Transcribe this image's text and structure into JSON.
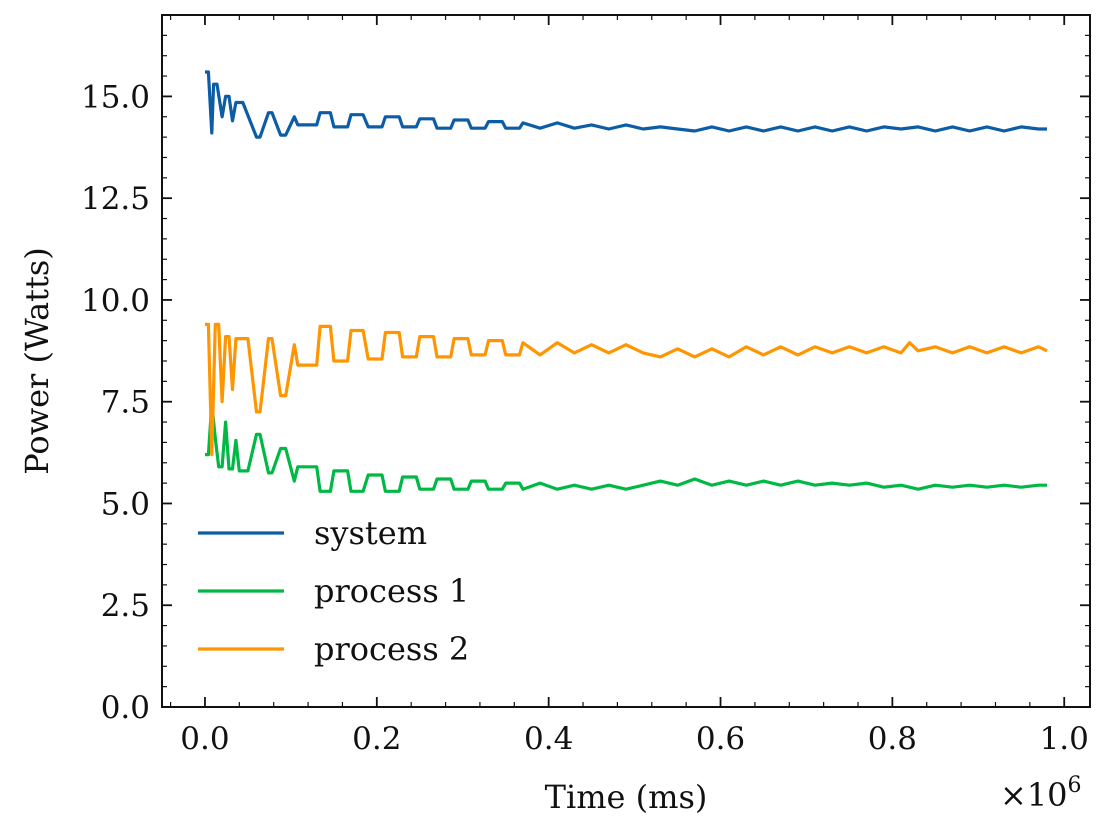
{
  "chart_data": {
    "type": "line",
    "title": "",
    "xlabel": "Time (ms)",
    "ylabel": "Power (Watts)",
    "x_multiplier_label": "×10",
    "x_multiplier_exponent": "6",
    "xlim": [
      -0.05,
      1.03
    ],
    "ylim": [
      0,
      17
    ],
    "xticks": [
      0.0,
      0.2,
      0.4,
      0.6,
      0.8,
      1.0
    ],
    "xtick_labels": [
      "0.0",
      "0.2",
      "0.4",
      "0.6",
      "0.8",
      "1.0"
    ],
    "yticks": [
      0.0,
      2.5,
      5.0,
      7.5,
      10.0,
      12.5,
      15.0
    ],
    "ytick_labels": [
      "0.0",
      "2.5",
      "5.0",
      "7.5",
      "10.0",
      "12.5",
      "15.0"
    ],
    "grid": false,
    "legend_position": "lower-left",
    "series": [
      {
        "name": "system",
        "color": "#0C5DA5",
        "x": [
          0.0,
          0.004,
          0.008,
          0.01,
          0.014,
          0.02,
          0.024,
          0.028,
          0.032,
          0.036,
          0.04,
          0.044,
          0.06,
          0.064,
          0.074,
          0.078,
          0.088,
          0.094,
          0.104,
          0.108,
          0.114,
          0.13,
          0.134,
          0.146,
          0.15,
          0.166,
          0.17,
          0.184,
          0.19,
          0.206,
          0.21,
          0.226,
          0.23,
          0.246,
          0.25,
          0.266,
          0.27,
          0.286,
          0.29,
          0.306,
          0.31,
          0.326,
          0.33,
          0.346,
          0.35,
          0.366,
          0.37,
          0.39,
          0.41,
          0.43,
          0.45,
          0.47,
          0.49,
          0.51,
          0.53,
          0.55,
          0.57,
          0.59,
          0.61,
          0.63,
          0.65,
          0.67,
          0.69,
          0.71,
          0.73,
          0.75,
          0.77,
          0.79,
          0.81,
          0.83,
          0.85,
          0.87,
          0.89,
          0.91,
          0.93,
          0.95,
          0.97,
          0.98
        ],
        "y": [
          15.6,
          15.6,
          14.1,
          15.3,
          15.3,
          14.5,
          15.0,
          15.0,
          14.4,
          14.85,
          14.85,
          14.85,
          14.0,
          14.0,
          14.6,
          14.6,
          14.05,
          14.05,
          14.5,
          14.3,
          14.3,
          14.3,
          14.6,
          14.6,
          14.25,
          14.25,
          14.55,
          14.55,
          14.25,
          14.25,
          14.5,
          14.5,
          14.25,
          14.25,
          14.45,
          14.45,
          14.22,
          14.22,
          14.42,
          14.42,
          14.22,
          14.22,
          14.38,
          14.38,
          14.22,
          14.22,
          14.35,
          14.22,
          14.35,
          14.22,
          14.3,
          14.2,
          14.3,
          14.2,
          14.25,
          14.2,
          14.15,
          14.25,
          14.15,
          14.25,
          14.15,
          14.25,
          14.15,
          14.25,
          14.15,
          14.25,
          14.15,
          14.25,
          14.2,
          14.25,
          14.15,
          14.25,
          14.15,
          14.25,
          14.15,
          14.25,
          14.2,
          14.2
        ]
      },
      {
        "name": "process 1",
        "color": "#00B945",
        "x": [
          0.0,
          0.004,
          0.008,
          0.012,
          0.016,
          0.02,
          0.024,
          0.028,
          0.032,
          0.036,
          0.04,
          0.044,
          0.05,
          0.06,
          0.064,
          0.074,
          0.078,
          0.088,
          0.094,
          0.104,
          0.108,
          0.114,
          0.13,
          0.134,
          0.146,
          0.15,
          0.166,
          0.17,
          0.184,
          0.19,
          0.206,
          0.21,
          0.226,
          0.23,
          0.246,
          0.25,
          0.266,
          0.27,
          0.286,
          0.29,
          0.306,
          0.31,
          0.326,
          0.33,
          0.346,
          0.35,
          0.366,
          0.37,
          0.39,
          0.41,
          0.43,
          0.45,
          0.47,
          0.49,
          0.51,
          0.53,
          0.55,
          0.57,
          0.59,
          0.61,
          0.63,
          0.65,
          0.67,
          0.69,
          0.71,
          0.73,
          0.75,
          0.77,
          0.79,
          0.81,
          0.83,
          0.85,
          0.87,
          0.89,
          0.91,
          0.93,
          0.95,
          0.97,
          0.98
        ],
        "y": [
          6.2,
          6.2,
          7.45,
          6.6,
          5.9,
          5.9,
          7.0,
          5.85,
          5.85,
          6.55,
          5.8,
          5.8,
          5.8,
          6.7,
          6.7,
          5.75,
          5.75,
          6.35,
          6.35,
          5.55,
          5.9,
          5.9,
          5.9,
          5.3,
          5.3,
          5.8,
          5.8,
          5.3,
          5.3,
          5.7,
          5.7,
          5.3,
          5.3,
          5.65,
          5.65,
          5.35,
          5.35,
          5.6,
          5.6,
          5.35,
          5.35,
          5.55,
          5.55,
          5.35,
          5.35,
          5.5,
          5.5,
          5.35,
          5.5,
          5.35,
          5.45,
          5.35,
          5.45,
          5.35,
          5.45,
          5.55,
          5.45,
          5.6,
          5.45,
          5.55,
          5.45,
          5.55,
          5.45,
          5.55,
          5.45,
          5.5,
          5.45,
          5.5,
          5.4,
          5.45,
          5.35,
          5.45,
          5.4,
          5.45,
          5.4,
          5.45,
          5.4,
          5.45,
          5.45
        ]
      },
      {
        "name": "process 2",
        "color": "#FF9500",
        "x": [
          0.0,
          0.004,
          0.008,
          0.012,
          0.016,
          0.02,
          0.024,
          0.028,
          0.032,
          0.036,
          0.04,
          0.044,
          0.05,
          0.06,
          0.064,
          0.074,
          0.078,
          0.088,
          0.094,
          0.104,
          0.108,
          0.114,
          0.13,
          0.134,
          0.146,
          0.15,
          0.166,
          0.17,
          0.184,
          0.19,
          0.206,
          0.21,
          0.226,
          0.23,
          0.246,
          0.25,
          0.266,
          0.27,
          0.286,
          0.29,
          0.306,
          0.31,
          0.326,
          0.33,
          0.346,
          0.35,
          0.366,
          0.37,
          0.39,
          0.41,
          0.43,
          0.45,
          0.47,
          0.49,
          0.51,
          0.53,
          0.55,
          0.57,
          0.59,
          0.61,
          0.63,
          0.65,
          0.67,
          0.69,
          0.71,
          0.73,
          0.75,
          0.77,
          0.79,
          0.81,
          0.82,
          0.83,
          0.85,
          0.87,
          0.89,
          0.91,
          0.93,
          0.95,
          0.97,
          0.98
        ],
        "y": [
          9.4,
          9.4,
          6.2,
          9.4,
          9.4,
          7.5,
          9.1,
          9.1,
          7.8,
          9.05,
          9.05,
          9.05,
          9.05,
          7.25,
          7.25,
          9.05,
          9.05,
          7.65,
          7.65,
          8.9,
          8.4,
          8.4,
          8.4,
          9.35,
          9.35,
          8.5,
          8.5,
          9.25,
          9.25,
          8.55,
          8.55,
          9.2,
          9.2,
          8.6,
          8.6,
          9.1,
          9.1,
          8.6,
          8.6,
          9.05,
          9.05,
          8.65,
          8.65,
          9.0,
          9.0,
          8.65,
          8.65,
          8.95,
          8.65,
          8.95,
          8.7,
          8.9,
          8.7,
          8.9,
          8.7,
          8.6,
          8.8,
          8.6,
          8.8,
          8.6,
          8.85,
          8.65,
          8.85,
          8.65,
          8.85,
          8.7,
          8.85,
          8.7,
          8.85,
          8.7,
          8.95,
          8.75,
          8.85,
          8.7,
          8.85,
          8.7,
          8.85,
          8.7,
          8.85,
          8.75
        ]
      }
    ]
  }
}
